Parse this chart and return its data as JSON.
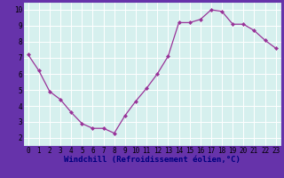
{
  "x": [
    0,
    1,
    2,
    3,
    4,
    5,
    6,
    7,
    8,
    9,
    10,
    11,
    12,
    13,
    14,
    15,
    16,
    17,
    18,
    19,
    20,
    21,
    22,
    23
  ],
  "y": [
    7.2,
    6.2,
    4.9,
    4.4,
    3.6,
    2.9,
    2.6,
    2.6,
    2.3,
    3.4,
    4.3,
    5.1,
    6.0,
    7.1,
    9.2,
    9.2,
    9.4,
    10.0,
    9.9,
    9.1,
    9.1,
    8.7,
    8.1,
    7.6
  ],
  "line_color": "#993399",
  "marker": "D",
  "marker_size": 2.0,
  "bg_color": "#d6f0ee",
  "grid_color": "#ffffff",
  "xlabel": "Windchill (Refroidissement éolien,°C)",
  "border_color": "#6633aa",
  "xlim": [
    -0.5,
    23.5
  ],
  "ylim": [
    1.5,
    10.5
  ],
  "yticks": [
    2,
    3,
    4,
    5,
    6,
    7,
    8,
    9,
    10
  ],
  "xticks": [
    0,
    1,
    2,
    3,
    4,
    5,
    6,
    7,
    8,
    9,
    10,
    11,
    12,
    13,
    14,
    15,
    16,
    17,
    18,
    19,
    20,
    21,
    22,
    23
  ],
  "tick_fontsize": 5.5,
  "xlabel_fontsize": 6.5
}
